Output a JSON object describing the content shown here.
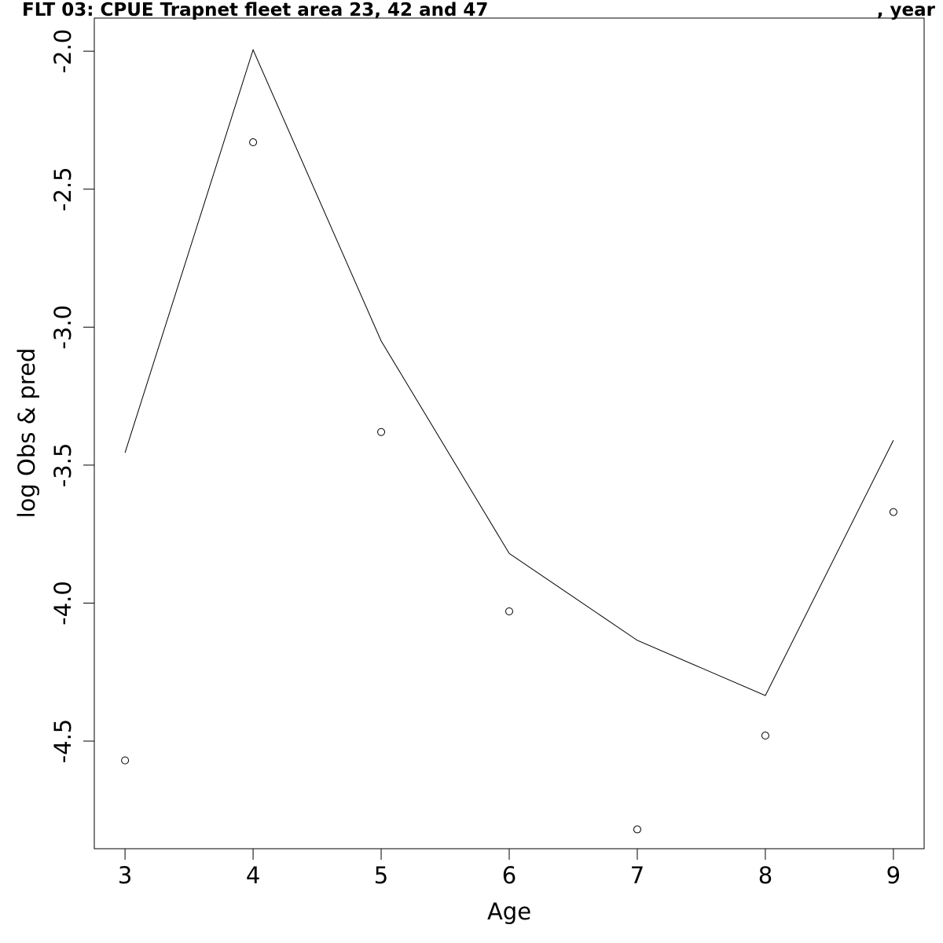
{
  "chart_data": {
    "type": "line",
    "title_left": "FLT 03: CPUE Trapnet fleet area 23, 42 and 47",
    "title_right": ", year",
    "xlabel": "Age",
    "ylabel": "log Obs & pred",
    "x": [
      3,
      4,
      5,
      6,
      7,
      8,
      9
    ],
    "x_tick_labels": [
      "3",
      "4",
      "5",
      "6",
      "7",
      "8",
      "9"
    ],
    "y_ticks": [
      -2.0,
      -2.5,
      -3.0,
      -3.5,
      -4.0,
      -4.5
    ],
    "y_tick_labels": [
      "-2.0",
      "-2.5",
      "-3.0",
      "-3.5",
      "-4.0",
      "-4.5"
    ],
    "xlim": [
      2.76,
      9.24
    ],
    "ylim": [
      -4.89,
      -1.88
    ],
    "grid": false,
    "series": [
      {
        "kind": "line",
        "values": [
          -3.455,
          -1.995,
          -3.05,
          -3.82,
          -4.135,
          -4.335,
          -3.41
        ]
      },
      {
        "kind": "points",
        "values": [
          -4.57,
          -2.33,
          -3.38,
          -4.03,
          -4.82,
          -4.48,
          -3.67
        ]
      }
    ],
    "colors": {
      "line": "#000000",
      "points": "#000000",
      "frame": "#000000"
    }
  }
}
